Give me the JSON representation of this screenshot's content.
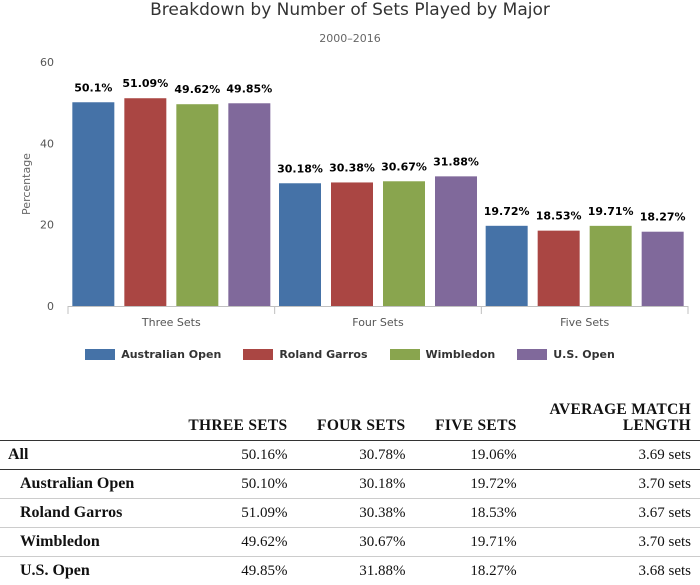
{
  "chart_data": {
    "type": "bar",
    "title": "Breakdown by Number of Sets Played by Major",
    "subtitle": "2000–2016",
    "ylabel": "Percentage",
    "xlabel": "",
    "ylim": [
      0,
      60
    ],
    "yticks": [
      0,
      20,
      40,
      60
    ],
    "grid": false,
    "legend_position": "bottom",
    "categories": [
      "Three Sets",
      "Four Sets",
      "Five Sets"
    ],
    "series": [
      {
        "name": "Australian Open",
        "color": "#4572a7",
        "values": [
          50.1,
          30.18,
          19.72
        ],
        "labels": [
          "50.1%",
          "30.18%",
          "19.72%"
        ]
      },
      {
        "name": "Roland Garros",
        "color": "#aa4643",
        "values": [
          51.09,
          30.38,
          18.53
        ],
        "labels": [
          "51.09%",
          "30.38%",
          "18.53%"
        ]
      },
      {
        "name": "Wimbledon",
        "color": "#89a54e",
        "values": [
          49.62,
          30.67,
          19.71
        ],
        "labels": [
          "49.62%",
          "30.67%",
          "19.71%"
        ]
      },
      {
        "name": "U.S. Open",
        "color": "#80699b",
        "values": [
          49.85,
          31.88,
          18.27
        ],
        "labels": [
          "49.85%",
          "31.88%",
          "18.27%"
        ]
      }
    ]
  },
  "table": {
    "headers": [
      "",
      "THREE SETS",
      "FOUR SETS",
      "FIVE SETS",
      "AVERAGE MATCH LENGTH"
    ],
    "rows": [
      {
        "label": "All",
        "cells": [
          "50.16%",
          "30.78%",
          "19.06%",
          "3.69 sets"
        ]
      },
      {
        "label": "Australian Open",
        "cells": [
          "50.10%",
          "30.18%",
          "19.72%",
          "3.70 sets"
        ]
      },
      {
        "label": "Roland Garros",
        "cells": [
          "51.09%",
          "30.38%",
          "18.53%",
          "3.67 sets"
        ]
      },
      {
        "label": "Wimbledon",
        "cells": [
          "49.62%",
          "30.67%",
          "19.71%",
          "3.70 sets"
        ]
      },
      {
        "label": "U.S. Open",
        "cells": [
          "49.85%",
          "31.88%",
          "18.27%",
          "3.68 sets"
        ]
      }
    ]
  }
}
